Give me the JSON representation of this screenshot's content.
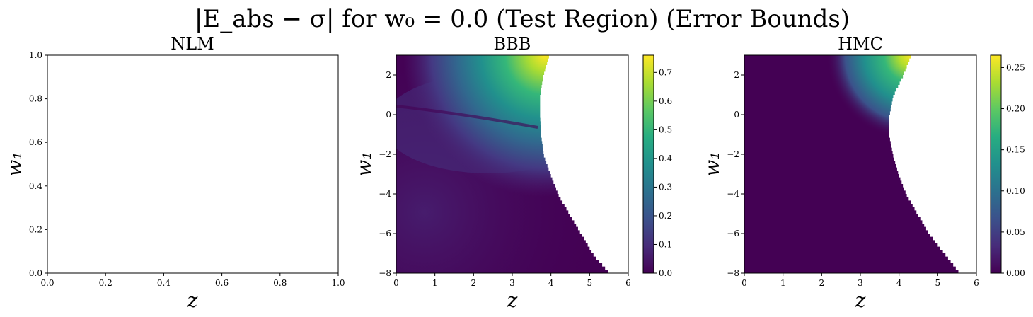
{
  "figure": {
    "suptitle": "|E_abs − σ| for w₀ = 0.0 (Test Region) (Error Bounds)"
  },
  "chart_data": [
    {
      "type": "heatmap",
      "title": "NLM",
      "xlabel": "z",
      "ylabel": "w₁",
      "xlim": [
        0,
        1
      ],
      "ylim": [
        0,
        1
      ],
      "x_ticks": [
        "0.0",
        "0.2",
        "0.4",
        "0.6",
        "0.8",
        "1.0"
      ],
      "y_ticks": [
        "0.0",
        "0.2",
        "0.4",
        "0.6",
        "0.8",
        "1.0"
      ],
      "colorbar": null,
      "data_present": false
    },
    {
      "type": "heatmap",
      "title": "BBB",
      "xlabel": "z",
      "ylabel": "w₁",
      "xlim": [
        0,
        6
      ],
      "ylim": [
        -8,
        3
      ],
      "x_ticks": [
        "0",
        "1",
        "2",
        "3",
        "4",
        "5",
        "6"
      ],
      "y_ticks": [
        "−8",
        "−6",
        "−4",
        "−2",
        "0",
        "2"
      ],
      "colormap": "viridis",
      "color_range": [
        0,
        0.76
      ],
      "colorbar_ticks": [
        "0.0",
        "0.1",
        "0.2",
        "0.3",
        "0.4",
        "0.5",
        "0.6",
        "0.7"
      ],
      "boundary": [
        [
          3.95,
          3
        ],
        [
          3.8,
          2
        ],
        [
          3.72,
          1
        ],
        [
          3.72,
          0
        ],
        [
          3.75,
          -1
        ],
        [
          3.82,
          -2
        ],
        [
          4.0,
          -3
        ],
        [
          4.2,
          -4
        ],
        [
          4.5,
          -5
        ],
        [
          4.8,
          -6
        ],
        [
          5.1,
          -7
        ],
        [
          5.55,
          -8
        ]
      ],
      "peak": {
        "z": 3.9,
        "w1": 3,
        "value": 0.76
      }
    },
    {
      "type": "heatmap",
      "title": "HMC",
      "xlabel": "z",
      "ylabel": "w₁",
      "xlim": [
        0,
        6
      ],
      "ylim": [
        -8,
        3
      ],
      "x_ticks": [
        "0",
        "1",
        "2",
        "3",
        "4",
        "5",
        "6"
      ],
      "y_ticks": [
        "−8",
        "−6",
        "−4",
        "−2",
        "0",
        "2"
      ],
      "colormap": "viridis",
      "color_range": [
        0,
        0.265
      ],
      "colorbar_ticks": [
        "0.00",
        "0.05",
        "0.10",
        "0.15",
        "0.20",
        "0.25"
      ],
      "boundary": [
        [
          4.3,
          3
        ],
        [
          4.1,
          2
        ],
        [
          3.85,
          1
        ],
        [
          3.75,
          0
        ],
        [
          3.75,
          -1
        ],
        [
          3.85,
          -2
        ],
        [
          4.0,
          -3
        ],
        [
          4.2,
          -4
        ],
        [
          4.5,
          -5
        ],
        [
          4.8,
          -6
        ],
        [
          5.2,
          -7
        ],
        [
          5.6,
          -8
        ]
      ],
      "peak": {
        "z": 4.2,
        "w1": 3,
        "value": 0.265
      }
    }
  ]
}
